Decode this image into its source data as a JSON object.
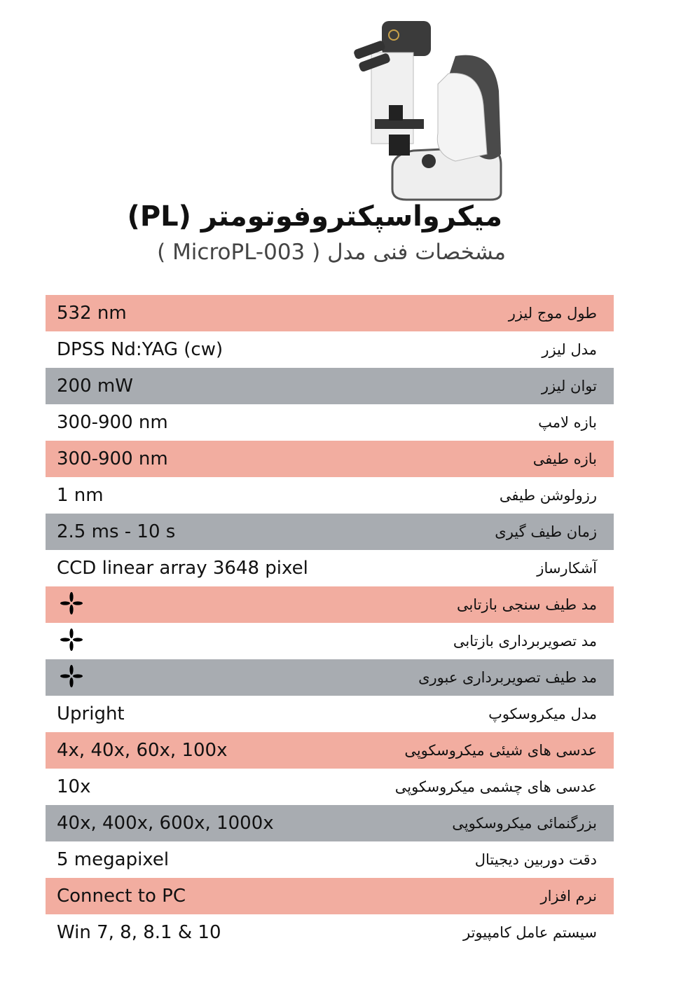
{
  "header": {
    "title": "میکرواسپکتروفوتومتر (PL)",
    "subtitle": "مشخصات فنی مدل ( MicroPL-003 )"
  },
  "colors": {
    "pink_row": "#f2ada0",
    "gray_row": "#a8acb1"
  },
  "specs": [
    {
      "label": "طول موج لیزر",
      "value": "532 nm",
      "style": "pink"
    },
    {
      "label": "مدل لیزر",
      "value": "DPSS Nd:YAG (cw)",
      "style": "white"
    },
    {
      "label": "توان لیزر",
      "value": "200 mW",
      "style": "gray"
    },
    {
      "label": "بازه لامپ",
      "value": "300-900 nm",
      "style": "white"
    },
    {
      "label": "بازه طیفی",
      "value": "300-900 nm",
      "style": "pink"
    },
    {
      "label": "رزولوشن طیفی",
      "value": "1 nm",
      "style": "white"
    },
    {
      "label": "زمان طیف گیری",
      "value": "2.5 ms - 10 s",
      "style": "gray"
    },
    {
      "label": "آشکارساز",
      "value": "CCD linear array 3648 pixel",
      "style": "white"
    },
    {
      "label": "مد  طیف سنجی بازتابی",
      "value": null,
      "icon": "four-petal-check-icon",
      "style": "pink"
    },
    {
      "label": "مد  تصویربرداری بازتابی",
      "value": null,
      "icon": "four-petal-check-icon",
      "style": "white"
    },
    {
      "label": "مد  طیف تصویربرداری عبوری",
      "value": null,
      "icon": "four-petal-check-icon",
      "style": "gray"
    },
    {
      "label": "مدل میکروسکوپ",
      "value": "Upright",
      "style": "white"
    },
    {
      "label": "عدسی های شیئی میکروسکوپی",
      "value": "4x, 40x, 60x, 100x",
      "style": "pink"
    },
    {
      "label": "عدسی های چشمی میکروسکوپی",
      "value": "10x",
      "style": "white"
    },
    {
      "label": "بزرگنمائی میکروسکوپی",
      "value": "40x, 400x, 600x, 1000x",
      "style": "gray"
    },
    {
      "label": "دقت دوربین دیجیتال",
      "value": "5 megapixel",
      "style": "white"
    },
    {
      "label": "نرم افزار",
      "value": "Connect to PC",
      "style": "pink"
    },
    {
      "label": "سیستم عامل کامپیوتر",
      "value": "Win 7, 8, 8.1 & 10",
      "style": "white"
    }
  ]
}
